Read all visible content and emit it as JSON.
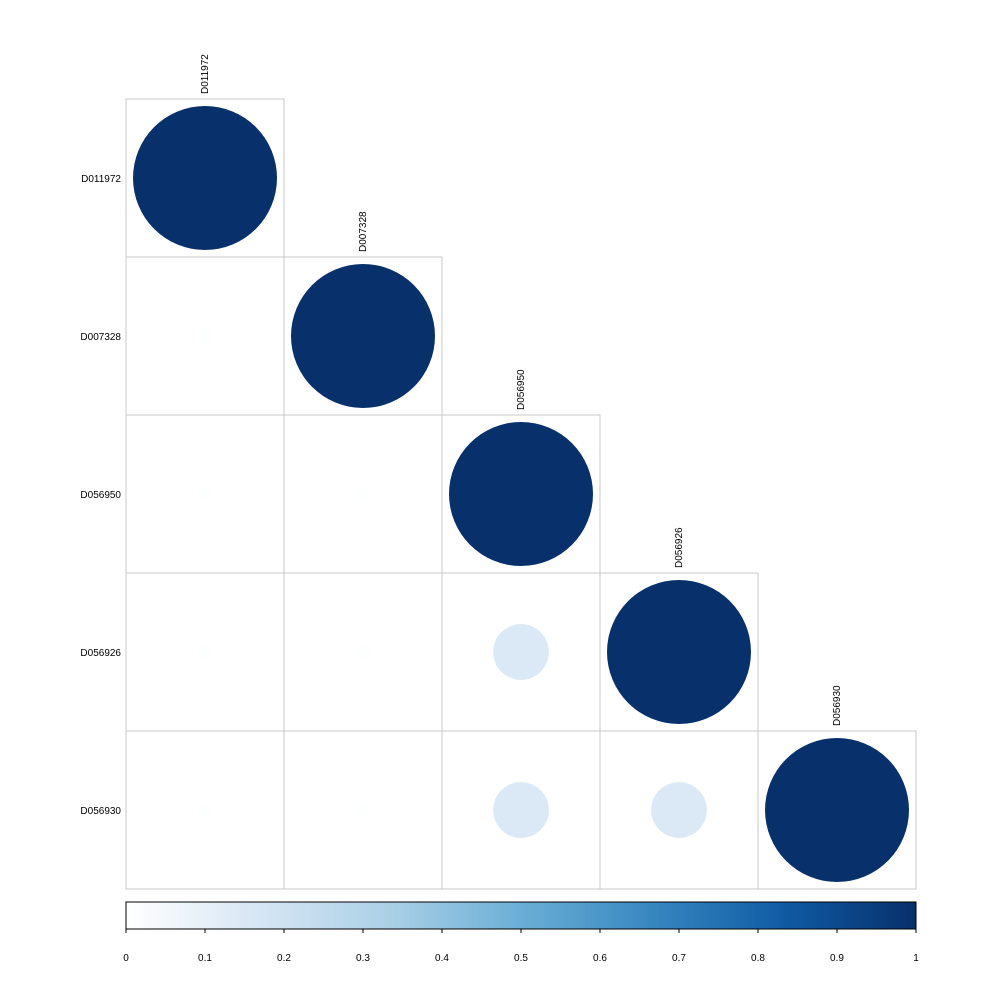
{
  "chart_data": {
    "type": "heatmap",
    "style": "correlation-matrix-circles",
    "shape": "lower-triangular",
    "variables": [
      "D011972",
      "D007328",
      "D056950",
      "D056926",
      "D056930"
    ],
    "matrix": [
      [
        1.0,
        null,
        null,
        null,
        null
      ],
      [
        0.01,
        1.0,
        null,
        null,
        null
      ],
      [
        0.01,
        0.01,
        1.0,
        null,
        null
      ],
      [
        0.01,
        0.01,
        0.15,
        1.0,
        null
      ],
      [
        0.01,
        0.01,
        0.15,
        0.15,
        1.0
      ]
    ],
    "colorbar": {
      "range": [
        0,
        1
      ],
      "ticks": [
        "0",
        "0.1",
        "0.2",
        "0.3",
        "0.4",
        "0.5",
        "0.6",
        "0.7",
        "0.8",
        "0.9",
        "1"
      ],
      "colors": [
        "#ffffff",
        "#d6e6f4",
        "#abd0e6",
        "#6aaed6",
        "#3787c0",
        "#105ba4",
        "#08306b"
      ]
    },
    "grid": true,
    "title": "",
    "xlabel": "",
    "ylabel": ""
  }
}
